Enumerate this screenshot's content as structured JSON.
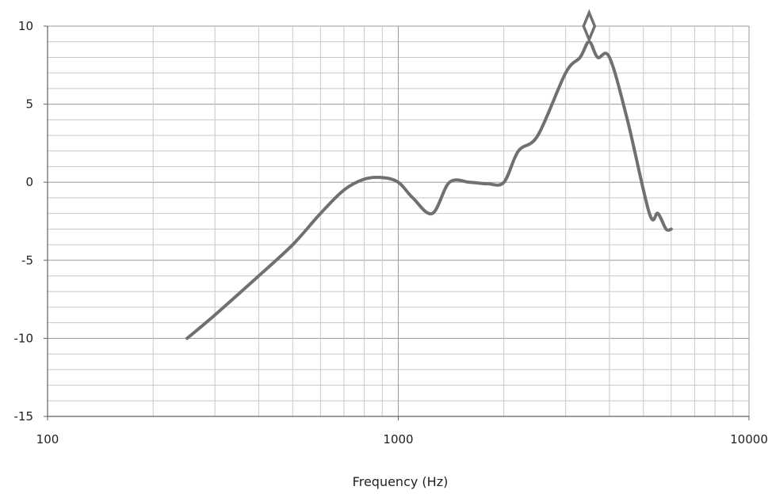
{
  "chart_data": {
    "type": "line",
    "title": "",
    "xlabel": "Frequency (Hz)",
    "ylabel": "",
    "x_scale": "log",
    "xlim": [
      100,
      10000
    ],
    "ylim": [
      -15,
      10
    ],
    "x_ticks": [
      100,
      1000,
      10000
    ],
    "y_ticks": [
      10,
      5,
      0,
      -5,
      -10,
      -15
    ],
    "grid": true,
    "legend": "none",
    "colors": {
      "line": "#707070",
      "grid_minor": "#c8c8c8",
      "grid_major": "#9a9a9a",
      "marker": "#707070"
    },
    "series": [
      {
        "x": [
          250,
          300,
          400,
          500,
          600,
          700,
          800,
          900,
          1000,
          1100,
          1250,
          1400,
          1600,
          1800,
          2000,
          2200,
          2500,
          3000,
          3300,
          3500,
          3700,
          4000,
          4500,
          5200,
          5500,
          5800,
          6000
        ],
        "y": [
          -10,
          -8.5,
          -6,
          -4,
          -2,
          -0.5,
          0.2,
          0.3,
          0,
          -1,
          -2,
          0,
          0,
          -0.1,
          0,
          2,
          3,
          7,
          8,
          9,
          8,
          8,
          4,
          -2,
          -2,
          -3,
          -3
        ]
      }
    ],
    "annotations": [
      {
        "type": "diamond-marker",
        "x": 3500,
        "y": 10
      }
    ]
  }
}
